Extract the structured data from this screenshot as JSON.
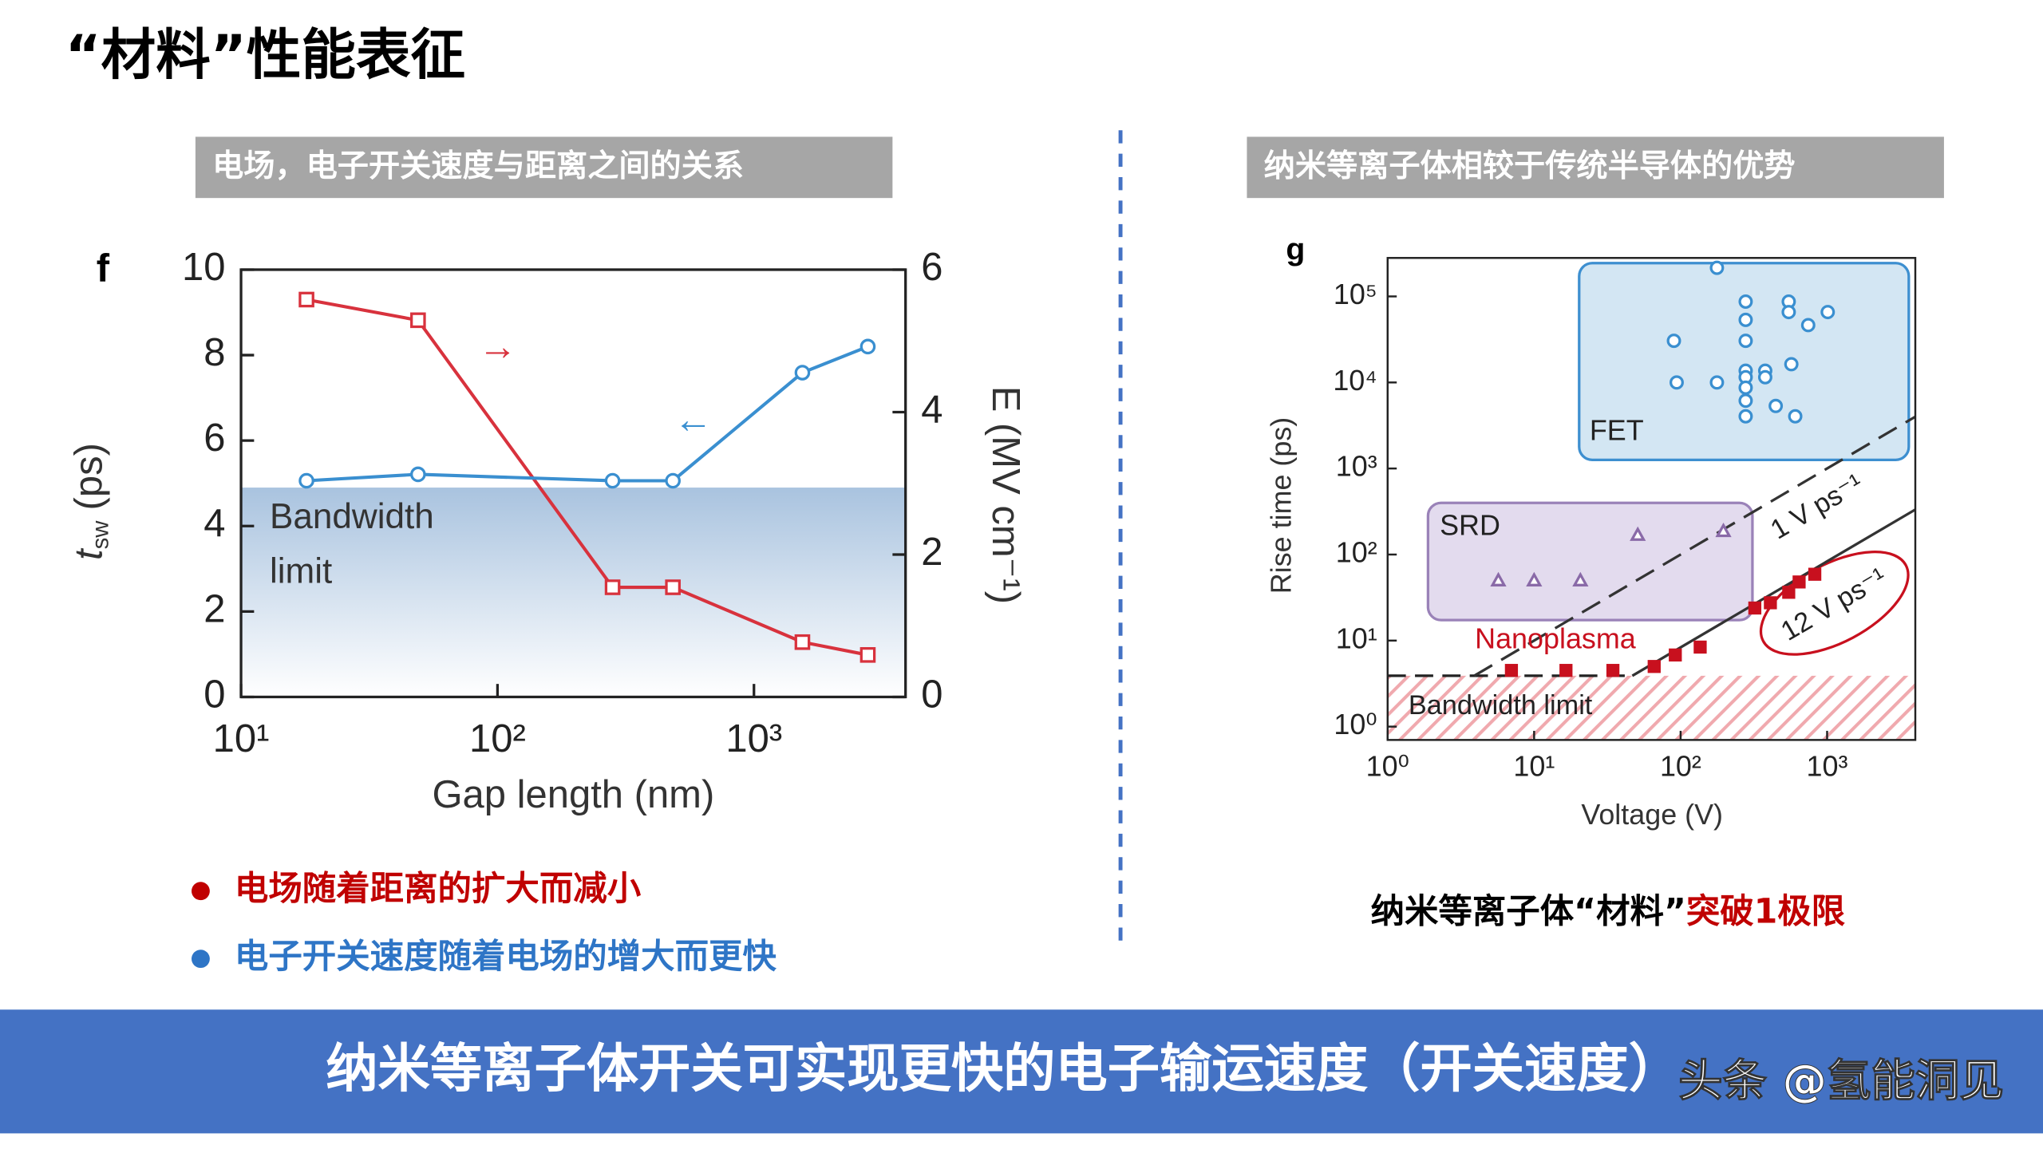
{
  "title": "“材料”性能表征",
  "panels": [
    {
      "header": "电场，电子开关速度与距离之间的关系"
    },
    {
      "header": "纳米等离子体相较于传统半导体的优势"
    }
  ],
  "bullets": [
    "电场随着距离的扩大而减小",
    "电子开关速度随着电场的增大而更快"
  ],
  "caption": {
    "black": "纳米等离子体“材料”",
    "red": "突破1极限"
  },
  "banner": "纳米等离子体开关可实现更快的电子输运速度（开关速度）",
  "watermark": "头条 @氢能洞见",
  "chart_data": [
    {
      "type": "line",
      "panel_letter": "f",
      "xlabel": "Gap length (nm)",
      "ylabel": [
        "t",
        "sw",
        "(ps)"
      ],
      "y2label": "E (MV cm⁻¹)",
      "log_x": true,
      "xlim": [
        10,
        3900
      ],
      "xticks": [
        {
          "value": 10,
          "label": "10¹"
        },
        {
          "value": 100,
          "label": "10²"
        },
        {
          "value": 1000,
          "label": "10³"
        }
      ],
      "ylim": [
        0,
        10
      ],
      "yticks": [
        0,
        2,
        4,
        6,
        8,
        10
      ],
      "y2lim": [
        0,
        6
      ],
      "y2ticks": [
        0,
        2,
        4,
        6
      ],
      "bandwidth_limit": 4.9,
      "bandwidth_label": [
        "Bandwidth",
        "limit"
      ],
      "x": [
        18,
        49,
        281,
        483,
        1545,
        2780
      ],
      "series": [
        {
          "name": "E",
          "axis": "y2",
          "color": "#d8323d",
          "marker": "square",
          "arrow": "→",
          "values": [
            5.58,
            5.29,
            1.54,
            1.54,
            0.77,
            0.59
          ]
        },
        {
          "name": "tsw",
          "color": "#3a8fd0",
          "marker": "circle",
          "arrow": "←",
          "values": [
            5.06,
            5.21,
            5.06,
            5.06,
            7.59,
            8.2
          ]
        }
      ]
    },
    {
      "type": "scatter",
      "panel_letter": "g",
      "xlabel": "Voltage (V)",
      "ylabel": "Rise time (ps)",
      "log_x": true,
      "log_y": true,
      "xlim": [
        1,
        4000
      ],
      "xticks": [
        {
          "value": 1,
          "label": "10⁰"
        },
        {
          "value": 10,
          "label": "10¹"
        },
        {
          "value": 100,
          "label": "10²"
        },
        {
          "value": 1000,
          "label": "10³"
        }
      ],
      "ylim": [
        0.7,
        280000
      ],
      "yticks": [
        {
          "value": 1,
          "label": "10⁰"
        },
        {
          "value": 10,
          "label": "10¹"
        },
        {
          "value": 100,
          "label": "10²"
        },
        {
          "value": 1000,
          "label": "10³"
        },
        {
          "value": 10000,
          "label": "10⁴"
        },
        {
          "value": 100000,
          "label": "10⁵"
        }
      ],
      "bandwidth_limit": 3.9,
      "bandwidth_label": "Bandwidth limit",
      "guides": [
        {
          "label": "1 V ps⁻¹",
          "rate": 1,
          "style": "dashed"
        },
        {
          "label": "12 V ps⁻¹",
          "rate": 12,
          "style": "solid"
        }
      ],
      "series": [
        {
          "name": "FET",
          "color": "#3a8fd0",
          "marker": "circle",
          "x": [
            177,
            90,
            278,
            547,
            1010,
            278,
            547,
            743,
            278,
            570,
            94,
            177,
            278,
            278,
            378,
            278,
            378,
            278,
            446,
            606,
            278
          ],
          "values": [
            215000,
            30500,
            87000,
            87000,
            65800,
            53400,
            65800,
            46400,
            30500,
            16300,
            10000,
            10000,
            13700,
            11500,
            13700,
            8700,
            11500,
            6140,
            5330,
            4040,
            4040
          ]
        },
        {
          "name": "SRD",
          "color": "#8a6aa8",
          "marker": "triangle",
          "x": [
            5.7,
            10,
            20.7,
            51,
            196
          ],
          "values": [
            50,
            50,
            50,
            169,
            187
          ]
        },
        {
          "name": "Nanoplasma",
          "color": "#c8101e",
          "marker": "square",
          "x": [
            7,
            16.5,
            34.5,
            66,
            92,
            136,
            321,
            410,
            547,
            644,
            824
          ],
          "values": [
            4.5,
            4.5,
            4.5,
            5,
            6.8,
            8.4,
            23.9,
            27.5,
            36.4,
            48,
            59
          ]
        }
      ]
    }
  ]
}
